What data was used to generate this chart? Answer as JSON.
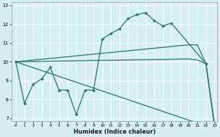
{
  "xlabel": "Humidex (Indice chaleur)",
  "bg_color": "#d4eef2",
  "grid_color": "#ffffff",
  "line_color": "#2d7a6e",
  "xlim_min": -0.5,
  "xlim_max": 23.3,
  "ylim_min": 6.85,
  "ylim_max": 13.15,
  "yticks": [
    7,
    8,
    9,
    10,
    11,
    12,
    13
  ],
  "xticks": [
    0,
    1,
    2,
    3,
    4,
    5,
    6,
    7,
    8,
    9,
    10,
    11,
    12,
    13,
    14,
    15,
    16,
    17,
    18,
    19,
    20,
    21,
    22,
    23
  ],
  "lines": [
    {
      "x": [
        0,
        1,
        2,
        3,
        4,
        5,
        6,
        7,
        8,
        9,
        10,
        11,
        12,
        13,
        14,
        15,
        16,
        17,
        18,
        22,
        23
      ],
      "y": [
        10.0,
        7.8,
        8.8,
        9.1,
        9.7,
        8.5,
        8.5,
        7.2,
        8.5,
        8.5,
        11.2,
        11.5,
        11.75,
        12.3,
        12.5,
        12.6,
        12.2,
        11.9,
        12.05,
        9.9,
        6.6
      ],
      "marker": "D",
      "markersize": 2.0,
      "linewidth": 1.0
    },
    {
      "x": [
        0,
        22,
        23
      ],
      "y": [
        10.0,
        6.6,
        6.6
      ],
      "marker": null,
      "linewidth": 1.0
    },
    {
      "x": [
        0,
        20,
        21,
        22,
        23
      ],
      "y": [
        10.0,
        10.15,
        10.1,
        9.9,
        6.6
      ],
      "marker": null,
      "linewidth": 1.0
    },
    {
      "x": [
        0,
        20,
        21,
        22,
        23
      ],
      "y": [
        10.0,
        10.9,
        10.9,
        9.9,
        6.6
      ],
      "marker": null,
      "linewidth": 1.0
    }
  ]
}
